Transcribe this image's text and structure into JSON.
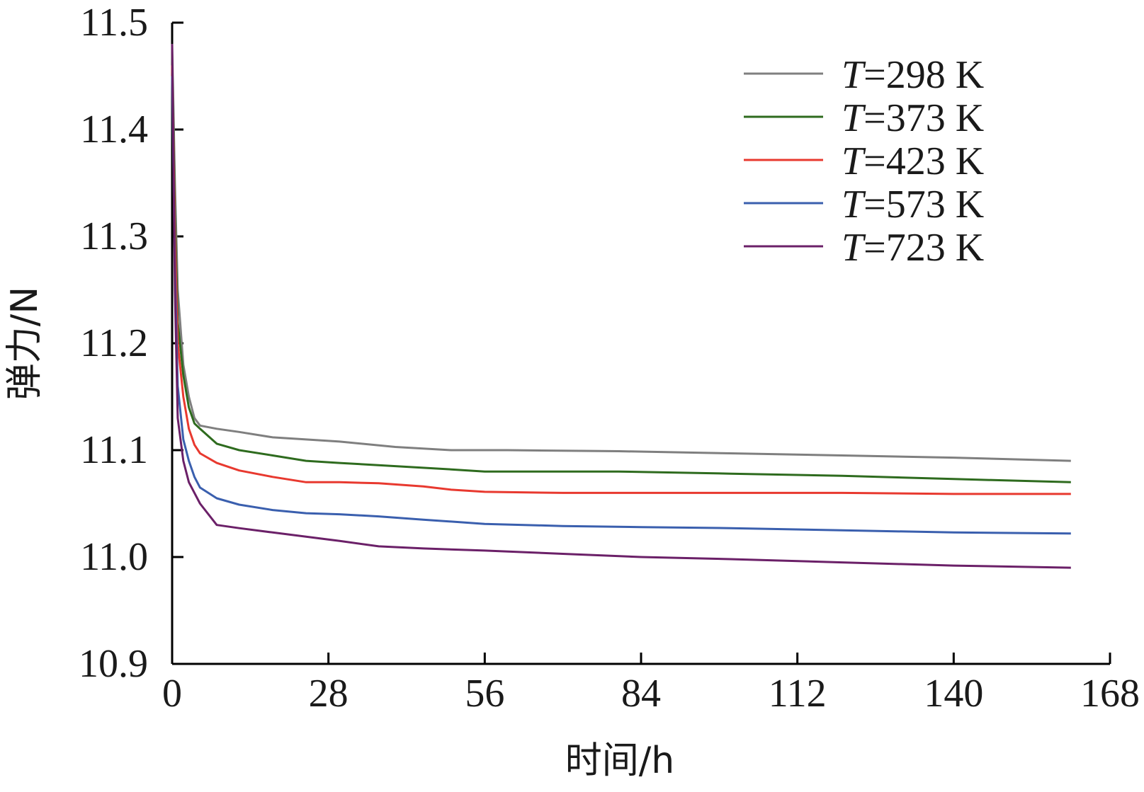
{
  "chart_data": {
    "type": "line",
    "title": "",
    "xlabel": "时间/h",
    "ylabel": "弹力/N",
    "xlim": [
      0,
      168
    ],
    "ylim": [
      10.9,
      11.5
    ],
    "xticks": [
      0,
      28,
      56,
      84,
      112,
      140,
      168
    ],
    "xtick_labels": [
      "0",
      "28",
      "56",
      "84",
      "112",
      "140",
      "168"
    ],
    "yticks": [
      10.9,
      11.0,
      11.1,
      11.2,
      11.3,
      11.4,
      11.5
    ],
    "ytick_labels": [
      "10.9",
      "11.0",
      "11.1",
      "11.2",
      "11.3",
      "11.4",
      "11.5"
    ],
    "grid": false,
    "legend_position": "top-right",
    "series": [
      {
        "name": "=298 K",
        "name_var": "T",
        "color": "#7f7f7f",
        "x": [
          0,
          0.5,
          1,
          2,
          3,
          4,
          5,
          8,
          12,
          18,
          24,
          30,
          40,
          50,
          60,
          80,
          100,
          120,
          140,
          161
        ],
        "y": [
          11.48,
          11.35,
          11.25,
          11.18,
          11.15,
          11.13,
          11.123,
          11.12,
          11.117,
          11.112,
          11.11,
          11.108,
          11.103,
          11.1,
          11.1,
          11.099,
          11.097,
          11.095,
          11.093,
          11.09
        ]
      },
      {
        "name": "=373 K",
        "name_var": "T",
        "color": "#2e6b1e",
        "x": [
          0,
          0.5,
          1,
          2,
          3,
          4,
          5,
          8,
          12,
          18,
          24,
          30,
          40,
          50,
          56,
          70,
          80,
          100,
          120,
          140,
          161
        ],
        "y": [
          11.47,
          11.32,
          11.22,
          11.17,
          11.14,
          11.125,
          11.12,
          11.106,
          11.1,
          11.095,
          11.09,
          11.088,
          11.085,
          11.082,
          11.08,
          11.08,
          11.08,
          11.078,
          11.076,
          11.073,
          11.07
        ]
      },
      {
        "name": "=423 K",
        "name_var": "T",
        "color": "#e8392f",
        "x": [
          0,
          0.5,
          1,
          2,
          3,
          4,
          5,
          8,
          12,
          18,
          24,
          30,
          37,
          45,
          50,
          56,
          70,
          84,
          100,
          120,
          140,
          161
        ],
        "y": [
          11.46,
          11.3,
          11.2,
          11.15,
          11.12,
          11.105,
          11.097,
          11.088,
          11.081,
          11.075,
          11.07,
          11.07,
          11.069,
          11.066,
          11.063,
          11.061,
          11.06,
          11.06,
          11.06,
          11.06,
          11.059,
          11.059
        ]
      },
      {
        "name": "=573 K",
        "name_var": "T",
        "color": "#3a5fae",
        "x": [
          0,
          0.5,
          1,
          2,
          3,
          4,
          5,
          8,
          12,
          18,
          24,
          30,
          37,
          45,
          56,
          70,
          84,
          100,
          120,
          140,
          161
        ],
        "y": [
          11.45,
          11.27,
          11.16,
          11.11,
          11.09,
          11.075,
          11.065,
          11.055,
          11.049,
          11.044,
          11.041,
          11.04,
          11.038,
          11.035,
          11.031,
          11.029,
          11.028,
          11.027,
          11.025,
          11.023,
          11.022
        ]
      },
      {
        "name": "=723 K",
        "name_var": "T",
        "color": "#6b2068",
        "x": [
          0,
          0.5,
          1,
          2,
          3,
          4,
          5,
          8,
          12,
          18,
          24,
          30,
          37,
          45,
          56,
          70,
          84,
          100,
          120,
          140,
          161
        ],
        "y": [
          11.48,
          11.25,
          11.13,
          11.09,
          11.07,
          11.06,
          11.05,
          11.03,
          11.027,
          11.023,
          11.019,
          11.015,
          11.01,
          11.008,
          11.006,
          11.003,
          11.0,
          10.998,
          10.995,
          10.992,
          10.99
        ]
      }
    ]
  }
}
